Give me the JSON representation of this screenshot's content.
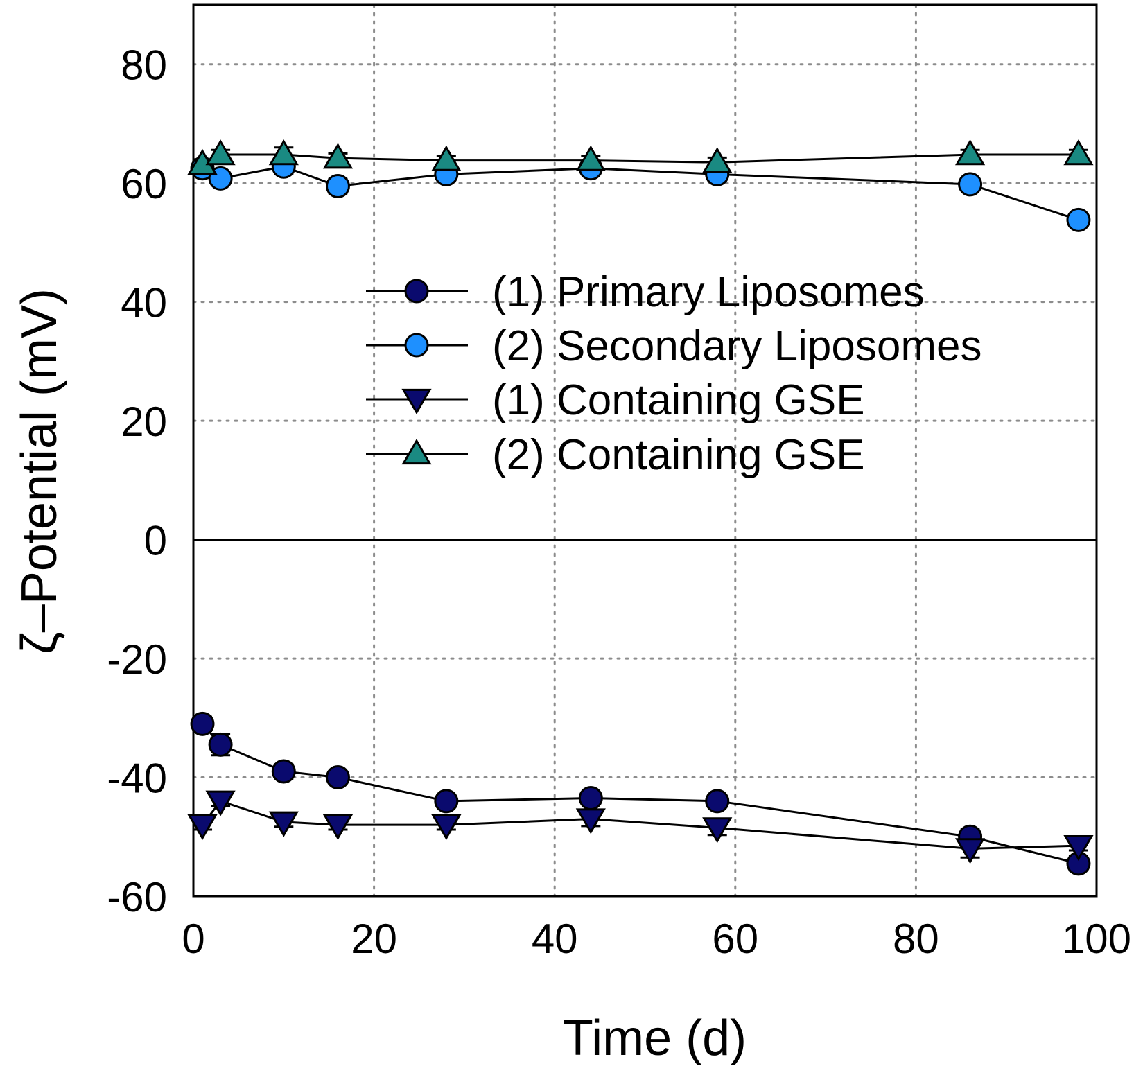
{
  "chart_data": {
    "type": "line",
    "xlabel": "Time (d)",
    "ylabel": "ζ–Potential (mV)",
    "xlim": [
      0,
      100
    ],
    "ylim": [
      -60,
      90
    ],
    "xticks": [
      0,
      20,
      40,
      60,
      80,
      100
    ],
    "yticks": [
      -60,
      -40,
      -20,
      0,
      20,
      40,
      60,
      80
    ],
    "xtick_labels": [
      "0",
      "20",
      "40",
      "60",
      "80",
      "100"
    ],
    "ytick_labels": [
      "-60",
      "-40",
      "-20",
      "0",
      "20",
      "40",
      "60",
      "80"
    ],
    "grid": true,
    "zero_line": true,
    "legend_position": "center",
    "series": [
      {
        "name": "(1) Primary Liposomes",
        "marker": "circle",
        "color": "#0a0a6e",
        "x": [
          1,
          3,
          10,
          16,
          28,
          44,
          58,
          86,
          98
        ],
        "y": [
          -31,
          -34.5,
          -39,
          -40,
          -44,
          -43.5,
          -44,
          -50,
          -54.5
        ],
        "err": [
          1.2,
          1.8,
          1.2,
          0.8,
          0.8,
          1.0,
          0.8,
          1.2,
          1.2
        ]
      },
      {
        "name": "(2) Secondary Liposomes",
        "marker": "circle",
        "color": "#1e90ff",
        "x": [
          1,
          3,
          10,
          16,
          28,
          44,
          58,
          86,
          98
        ],
        "y": [
          62.5,
          60.8,
          62.8,
          59.5,
          61.5,
          62.5,
          61.5,
          59.8,
          53.8
        ],
        "err": [
          0.8,
          0.8,
          1.2,
          1.2,
          1.2,
          0.8,
          1.2,
          0.8,
          0.8
        ]
      },
      {
        "name": "(1) Containing GSE",
        "marker": "triangle-down",
        "color": "#0a0a6e",
        "x": [
          1,
          3,
          10,
          16,
          28,
          44,
          58,
          86,
          98
        ],
        "y": [
          -48,
          -44,
          -47.5,
          -48,
          -48,
          -47,
          -48.5,
          -52,
          -51.5
        ],
        "err": [
          0.8,
          0.8,
          0.8,
          0.8,
          0.8,
          1.2,
          1.2,
          1.5,
          0.8
        ]
      },
      {
        "name": "(2) Containing GSE",
        "marker": "triangle-up",
        "color": "#1a8a82",
        "x": [
          1,
          3,
          10,
          16,
          28,
          44,
          58,
          86,
          98
        ],
        "y": [
          63.2,
          64.8,
          64.8,
          64.2,
          63.8,
          63.8,
          63.5,
          64.8,
          64.8
        ],
        "err": [
          0.8,
          0.8,
          1.2,
          0.8,
          0.8,
          0.8,
          0.8,
          0.8,
          0.8
        ]
      }
    ]
  }
}
